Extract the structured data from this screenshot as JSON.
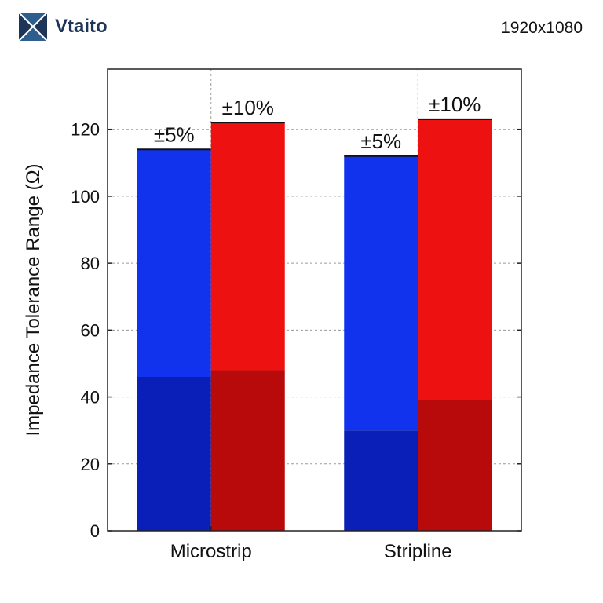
{
  "header": {
    "logo_text": "Vtaito",
    "logo_icon": "vtaito-logo-icon",
    "resolution_label": "1920x1080"
  },
  "chart_data": {
    "type": "bar",
    "stacked": true,
    "ylabel": "Impedance Tolerance Range (Ω)",
    "xlabel": "",
    "ylim": [
      0,
      138
    ],
    "yticks": [
      0,
      20,
      40,
      60,
      80,
      100,
      120
    ],
    "grid": true,
    "categories": [
      "Microstrip",
      "Stripline"
    ],
    "series": [
      {
        "label": "±5%",
        "base": [
          46,
          30
        ],
        "top": [
          114,
          112
        ],
        "color_light": "#1133ee",
        "color_dark": "#0a1fb8"
      },
      {
        "label": "±10%",
        "base": [
          48,
          39
        ],
        "top": [
          122,
          123
        ],
        "color_light": "#ee1111",
        "color_dark": "#b80a0a"
      }
    ]
  }
}
